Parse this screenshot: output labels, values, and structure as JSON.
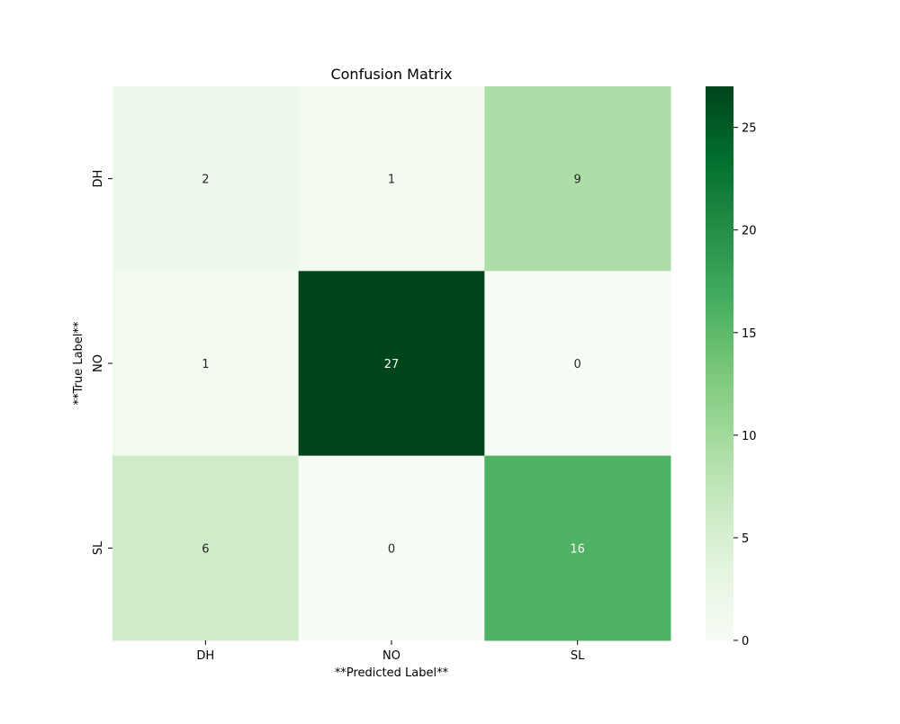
{
  "chart_data": {
    "type": "heatmap",
    "title": "Confusion Matrix",
    "xlabel": "**Predicted Label**",
    "ylabel": "**True Label**",
    "x_categories": [
      "DH",
      "NO",
      "SL"
    ],
    "y_categories": [
      "DH",
      "NO",
      "SL"
    ],
    "values": [
      [
        2,
        1,
        9
      ],
      [
        1,
        27,
        0
      ],
      [
        6,
        0,
        16
      ]
    ],
    "colormap": "Greens",
    "color_range": [
      0,
      27
    ],
    "colorbar_ticks": [
      0,
      5,
      10,
      15,
      20,
      25
    ],
    "colors": {
      "low": "#f7fcf5",
      "high": "#00441b",
      "text_dark": "#262626",
      "text_light": "#ffffff"
    }
  }
}
